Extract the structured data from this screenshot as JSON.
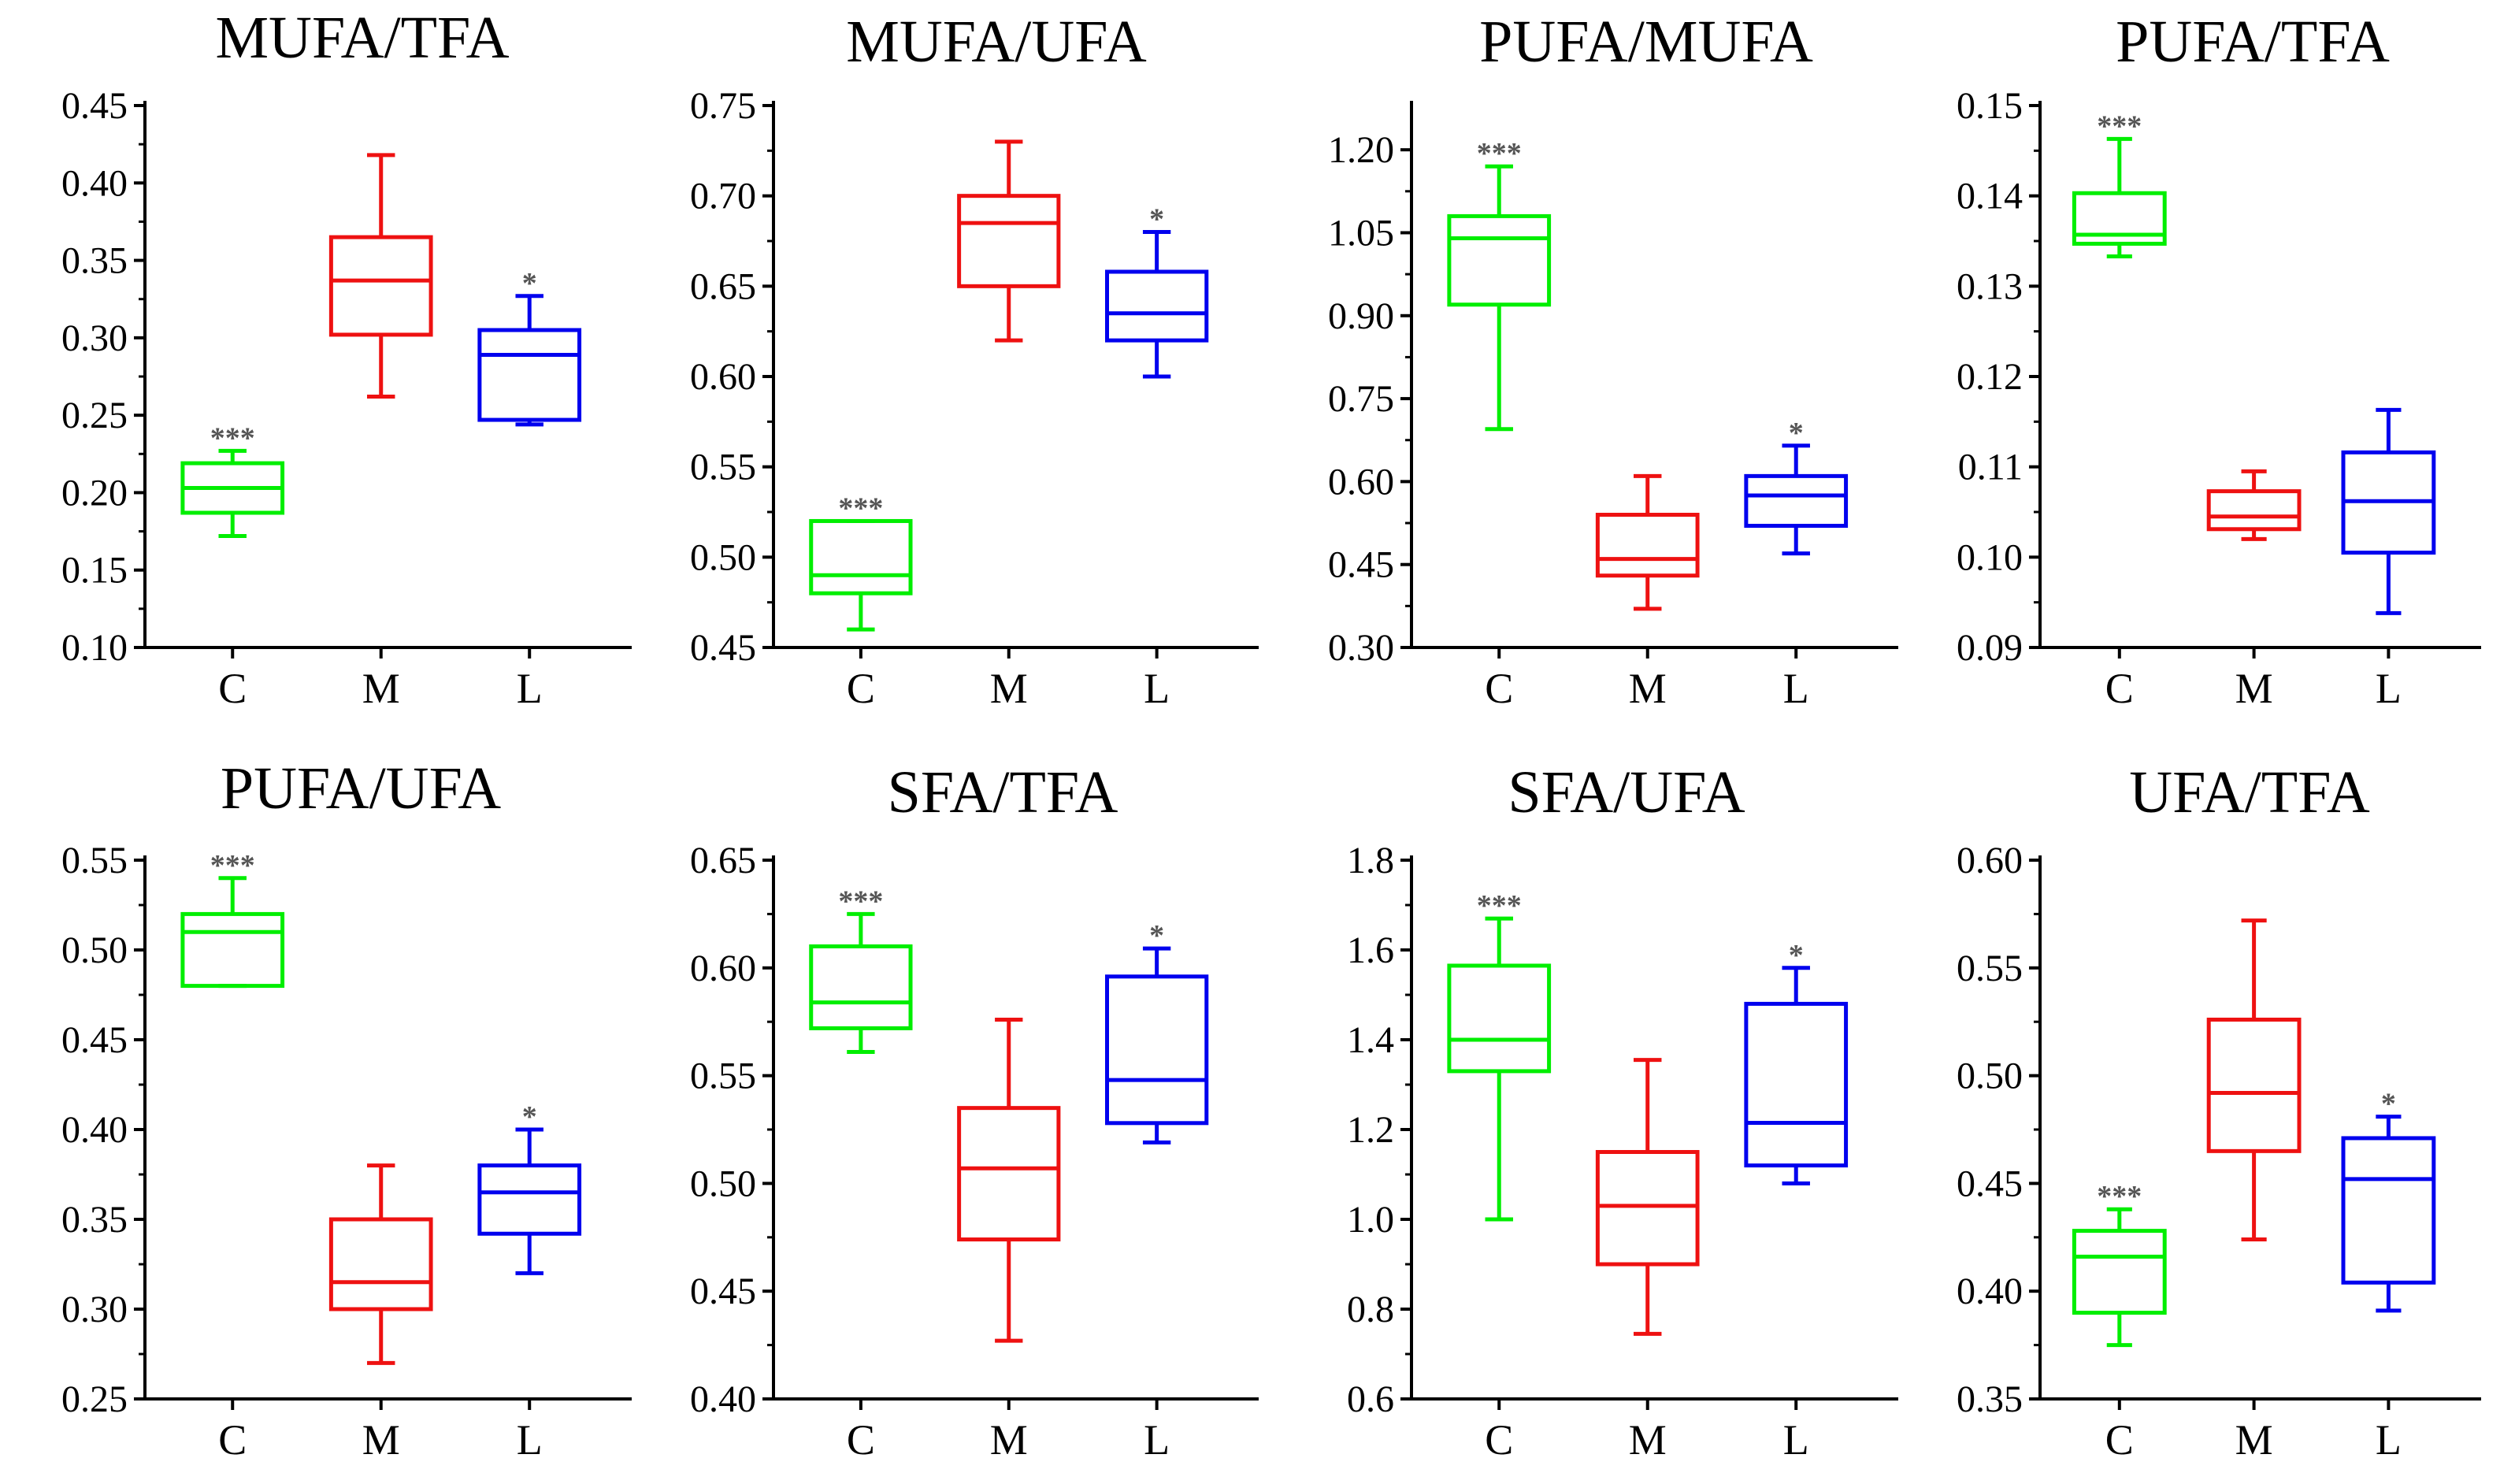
{
  "figure": {
    "name": "Fatty acid ratio box plots"
  },
  "colors": {
    "C": "#00ee00",
    "M": "#ee1111",
    "L": "#0000ee",
    "axis": "#000000",
    "significance": "#555555"
  },
  "chart_data": [
    {
      "type": "box",
      "title": "MUFA/TFA",
      "categories": [
        "C",
        "M",
        "L"
      ],
      "yticks": [
        "0.10",
        "0.15",
        "0.20",
        "0.25",
        "0.30",
        "0.35",
        "0.40",
        "0.45"
      ],
      "ylim": [
        0.1,
        0.45
      ],
      "series": [
        {
          "name": "C",
          "whisker_low": 0.172,
          "q1": 0.187,
          "median": 0.203,
          "q3": 0.219,
          "whisker_high": 0.227,
          "significance": "***"
        },
        {
          "name": "M",
          "whisker_low": 0.262,
          "q1": 0.302,
          "median": 0.337,
          "q3": 0.365,
          "whisker_high": 0.418,
          "significance": ""
        },
        {
          "name": "L",
          "whisker_low": 0.244,
          "q1": 0.247,
          "median": 0.289,
          "q3": 0.305,
          "whisker_high": 0.327,
          "significance": "*"
        }
      ]
    },
    {
      "type": "box",
      "title": "MUFA/UFA",
      "categories": [
        "C",
        "M",
        "L"
      ],
      "yticks": [
        "0.45",
        "0.50",
        "0.55",
        "0.60",
        "0.65",
        "0.70",
        "0.75"
      ],
      "ylim": [
        0.45,
        0.75
      ],
      "series": [
        {
          "name": "C",
          "whisker_low": 0.46,
          "q1": 0.48,
          "median": 0.49,
          "q3": 0.52,
          "whisker_high": 0.52,
          "significance": "***"
        },
        {
          "name": "M",
          "whisker_low": 0.62,
          "q1": 0.65,
          "median": 0.685,
          "q3": 0.7,
          "whisker_high": 0.73,
          "significance": ""
        },
        {
          "name": "L",
          "whisker_low": 0.6,
          "q1": 0.62,
          "median": 0.635,
          "q3": 0.658,
          "whisker_high": 0.68,
          "significance": "*"
        }
      ]
    },
    {
      "type": "box",
      "title": "PUFA/MUFA",
      "categories": [
        "C",
        "M",
        "L"
      ],
      "yticks": [
        "0.30",
        "0.45",
        "0.60",
        "0.75",
        "0.90",
        "1.05",
        "1.20"
      ],
      "ylim": [
        0.3,
        1.28
      ],
      "series": [
        {
          "name": "C",
          "whisker_low": 0.695,
          "q1": 0.92,
          "median": 1.04,
          "q3": 1.08,
          "whisker_high": 1.17,
          "significance": "***"
        },
        {
          "name": "M",
          "whisker_low": 0.37,
          "q1": 0.43,
          "median": 0.46,
          "q3": 0.54,
          "whisker_high": 0.61,
          "significance": ""
        },
        {
          "name": "L",
          "whisker_low": 0.47,
          "q1": 0.52,
          "median": 0.575,
          "q3": 0.61,
          "whisker_high": 0.665,
          "significance": "*"
        }
      ]
    },
    {
      "type": "box",
      "title": "PUFA/TFA",
      "categories": [
        "C",
        "M",
        "L"
      ],
      "yticks": [
        "0.09",
        "0.10",
        "0.11",
        "0.12",
        "0.13",
        "0.14",
        "0.15"
      ],
      "ylim": [
        0.09,
        0.15
      ],
      "series": [
        {
          "name": "C",
          "whisker_low": 0.1333,
          "q1": 0.1347,
          "median": 0.1357,
          "q3": 0.1403,
          "whisker_high": 0.1463,
          "significance": "***"
        },
        {
          "name": "M",
          "whisker_low": 0.102,
          "q1": 0.1031,
          "median": 0.1045,
          "q3": 0.1073,
          "whisker_high": 0.1095,
          "significance": ""
        },
        {
          "name": "L",
          "whisker_low": 0.0938,
          "q1": 0.1005,
          "median": 0.1062,
          "q3": 0.1116,
          "whisker_high": 0.1163,
          "significance": ""
        }
      ]
    },
    {
      "type": "box",
      "title": "PUFA/UFA",
      "categories": [
        "C",
        "M",
        "L"
      ],
      "yticks": [
        "0.25",
        "0.30",
        "0.35",
        "0.40",
        "0.45",
        "0.50",
        "0.55"
      ],
      "ylim": [
        0.25,
        0.55
      ],
      "series": [
        {
          "name": "C",
          "whisker_low": 0.48,
          "q1": 0.48,
          "median": 0.51,
          "q3": 0.52,
          "whisker_high": 0.54,
          "significance": "***"
        },
        {
          "name": "M",
          "whisker_low": 0.27,
          "q1": 0.3,
          "median": 0.315,
          "q3": 0.35,
          "whisker_high": 0.38,
          "significance": ""
        },
        {
          "name": "L",
          "whisker_low": 0.32,
          "q1": 0.342,
          "median": 0.365,
          "q3": 0.38,
          "whisker_high": 0.4,
          "significance": "*"
        }
      ]
    },
    {
      "type": "box",
      "title": "SFA/TFA",
      "categories": [
        "C",
        "M",
        "L"
      ],
      "yticks": [
        "0.40",
        "0.45",
        "0.50",
        "0.55",
        "0.60",
        "0.65"
      ],
      "ylim": [
        0.4,
        0.65
      ],
      "series": [
        {
          "name": "C",
          "whisker_low": 0.561,
          "q1": 0.572,
          "median": 0.584,
          "q3": 0.61,
          "whisker_high": 0.625,
          "significance": "***"
        },
        {
          "name": "M",
          "whisker_low": 0.427,
          "q1": 0.474,
          "median": 0.507,
          "q3": 0.535,
          "whisker_high": 0.576,
          "significance": ""
        },
        {
          "name": "L",
          "whisker_low": 0.519,
          "q1": 0.528,
          "median": 0.548,
          "q3": 0.596,
          "whisker_high": 0.609,
          "significance": "*"
        }
      ]
    },
    {
      "type": "box",
      "title": "SFA/UFA",
      "categories": [
        "C",
        "M",
        "L"
      ],
      "yticks": [
        "0.6",
        "0.8",
        "1.0",
        "1.2",
        "1.4",
        "1.6",
        "1.8"
      ],
      "ylim": [
        0.6,
        1.8
      ],
      "series": [
        {
          "name": "C",
          "whisker_low": 1.0,
          "q1": 1.33,
          "median": 1.4,
          "q3": 1.565,
          "whisker_high": 1.67,
          "significance": "***"
        },
        {
          "name": "M",
          "whisker_low": 0.745,
          "q1": 0.9,
          "median": 1.03,
          "q3": 1.15,
          "whisker_high": 1.355,
          "significance": ""
        },
        {
          "name": "L",
          "whisker_low": 1.08,
          "q1": 1.12,
          "median": 1.215,
          "q3": 1.48,
          "whisker_high": 1.56,
          "significance": "*"
        }
      ]
    },
    {
      "type": "box",
      "title": "UFA/TFA",
      "categories": [
        "C",
        "M",
        "L"
      ],
      "yticks": [
        "0.35",
        "0.40",
        "0.45",
        "0.50",
        "0.55",
        "0.60"
      ],
      "ylim": [
        0.35,
        0.6
      ],
      "series": [
        {
          "name": "C",
          "whisker_low": 0.375,
          "q1": 0.39,
          "median": 0.416,
          "q3": 0.428,
          "whisker_high": 0.438,
          "significance": "***"
        },
        {
          "name": "M",
          "whisker_low": 0.424,
          "q1": 0.465,
          "median": 0.492,
          "q3": 0.526,
          "whisker_high": 0.572,
          "significance": ""
        },
        {
          "name": "L",
          "whisker_low": 0.391,
          "q1": 0.404,
          "median": 0.452,
          "q3": 0.471,
          "whisker_high": 0.481,
          "significance": "*"
        }
      ]
    }
  ]
}
